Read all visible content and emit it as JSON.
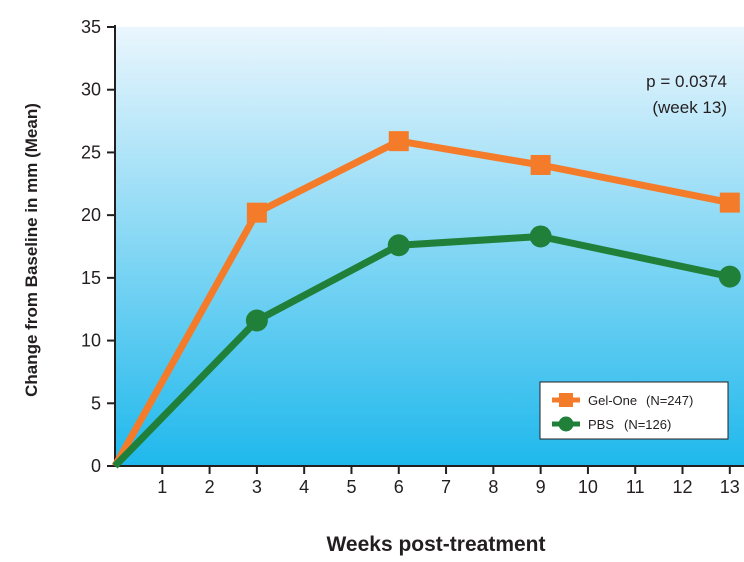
{
  "chart_data": {
    "type": "line",
    "x": [
      0,
      3,
      6,
      9,
      13
    ],
    "series": [
      {
        "name": "Gel-One",
        "n_label": "(N=247)",
        "values": [
          0,
          20.2,
          25.9,
          24.0,
          21.0
        ],
        "color": "#f47b2a",
        "marker": "square"
      },
      {
        "name": "PBS",
        "n_label": "(N=126)",
        "values": [
          0,
          11.6,
          17.6,
          18.3,
          15.1
        ],
        "color": "#20803a",
        "marker": "circle"
      }
    ],
    "xlabel": "Weeks post-treatment",
    "ylabel": "Change from Baseline in mm (Mean)",
    "xticks": [
      1,
      2,
      3,
      4,
      5,
      6,
      7,
      8,
      9,
      10,
      11,
      12,
      13
    ],
    "yticks": [
      0,
      5,
      10,
      15,
      20,
      25,
      30,
      35
    ],
    "xlim": [
      0,
      13.3
    ],
    "ylim": [
      0,
      35
    ],
    "grid": false,
    "background_gradient": [
      "#eaf6fd",
      "#1fb8ec"
    ],
    "annotation": {
      "line1": "p = 0.0374",
      "line2": "(week 13)"
    },
    "legend_position": "bottom-right"
  }
}
